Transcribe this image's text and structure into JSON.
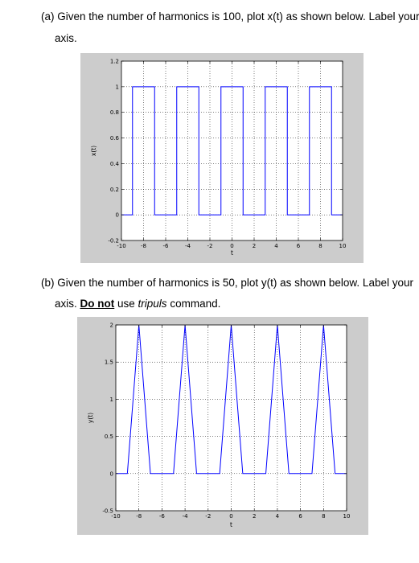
{
  "questions": {
    "a": {
      "line1": "(a) Given the number of harmonics is 100, plot x(t) as shown below. Label your",
      "line2": "axis."
    },
    "b": {
      "line1": "(b) Given the number of harmonics is 50, plot y(t) as shown below. Label your",
      "line2_start": "axis. ",
      "line2_emph": "Do not",
      "line2_mid": " use ",
      "line2_italic": "tripuls",
      "line2_end": " command."
    }
  },
  "colors": {
    "figure_bg": "#cccccc",
    "line": "#0000ff",
    "grid": "#000000"
  },
  "chart_data": [
    {
      "type": "line",
      "title": "",
      "xlabel": "t",
      "ylabel": "x(t)",
      "xlim": [
        -10,
        10
      ],
      "ylim": [
        -0.2,
        1.2
      ],
      "xticks": [
        -10,
        -8,
        -6,
        -4,
        -2,
        0,
        2,
        4,
        6,
        8,
        10
      ],
      "yticks": [
        -0.2,
        0,
        0.2,
        0.4,
        0.6,
        0.8,
        1,
        1.2
      ],
      "xticklabels": [
        "-10",
        "-8",
        "-6",
        "-4",
        "-2",
        "0",
        "2",
        "4",
        "6",
        "8",
        "10"
      ],
      "yticklabels": [
        "-0.2",
        "0",
        "0.2",
        "0.4",
        "0.6",
        "0.8",
        "1",
        "1.2"
      ],
      "grid": true,
      "series": [
        {
          "x": [
            -10,
            -9,
            -9,
            -7,
            -7,
            -5,
            -5,
            -3,
            -3,
            -1,
            -1,
            1,
            1,
            3,
            3,
            5,
            5,
            7,
            7,
            9,
            9,
            10
          ],
          "y": [
            0,
            0,
            1,
            1,
            0,
            0,
            1,
            1,
            0,
            0,
            1,
            1,
            0,
            0,
            1,
            1,
            0,
            0,
            1,
            1,
            0,
            0
          ]
        }
      ]
    },
    {
      "type": "line",
      "title": "",
      "xlabel": "t",
      "ylabel": "y(t)",
      "xlim": [
        -10,
        10
      ],
      "ylim": [
        -0.5,
        2
      ],
      "xticks": [
        -10,
        -8,
        -6,
        -4,
        -2,
        0,
        2,
        4,
        6,
        8,
        10
      ],
      "yticks": [
        -0.5,
        0,
        0.5,
        1,
        1.5,
        2
      ],
      "xticklabels": [
        "-10",
        "-8",
        "-6",
        "-4",
        "-2",
        "0",
        "2",
        "4",
        "6",
        "8",
        "10"
      ],
      "yticklabels": [
        "-0.5",
        "0",
        "0.5",
        "1",
        "1.5",
        "2"
      ],
      "grid": true,
      "series": [
        {
          "x": [
            -10,
            -9,
            -8,
            -7,
            -6,
            -5,
            -4,
            -3,
            -2,
            -1,
            0,
            1,
            2,
            3,
            4,
            5,
            6,
            7,
            8,
            9,
            10
          ],
          "y": [
            0,
            0,
            2,
            0,
            0,
            0,
            2,
            0,
            0,
            0,
            2,
            0,
            0,
            0,
            2,
            0,
            0,
            0,
            2,
            0,
            0
          ]
        }
      ]
    }
  ]
}
